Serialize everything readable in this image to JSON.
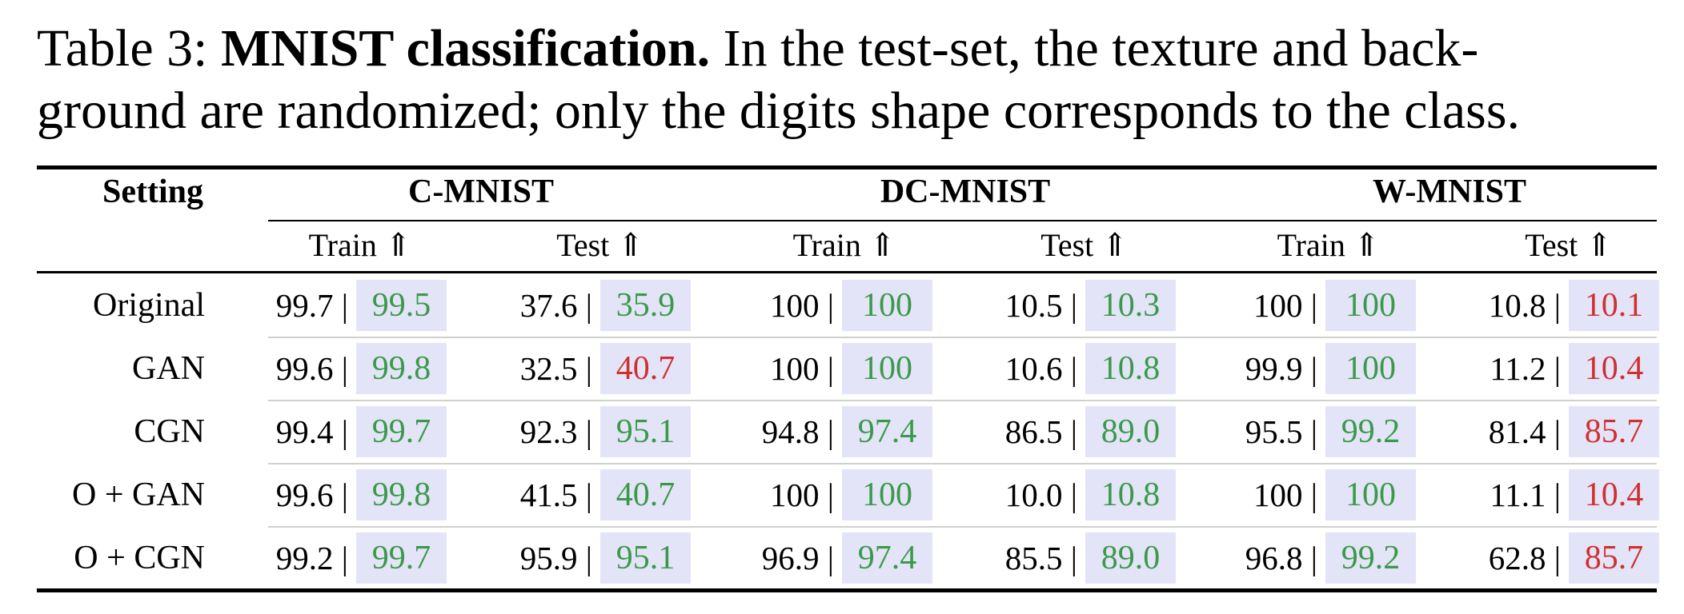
{
  "caption": {
    "prefix": "Table 3: ",
    "bold": "MNIST classification.",
    "line1_rest": " In the test-set, the texture and back-",
    "line2": "ground are randomized; only the digits shape corresponds to the class."
  },
  "table": {
    "setting_header": "Setting",
    "groups": [
      "C-MNIST",
      "DC-MNIST",
      "W-MNIST"
    ],
    "subheaders": [
      "Train ⇑",
      "Test ⇑",
      "Train ⇑",
      "Test ⇑",
      "Train ⇑",
      "Test ⇑"
    ],
    "rows": [
      {
        "label": "Original",
        "cells": [
          {
            "base": "99.7 |",
            "ours": "99.5",
            "status": "good"
          },
          {
            "base": "37.6 |",
            "ours": "35.9",
            "status": "good"
          },
          {
            "base": "100 |",
            "ours": "100",
            "status": "good"
          },
          {
            "base": "10.5 |",
            "ours": "10.3",
            "status": "good"
          },
          {
            "base": "100 |",
            "ours": "100",
            "status": "good"
          },
          {
            "base": "10.8 |",
            "ours": "10.1",
            "status": "bad"
          }
        ]
      },
      {
        "label": "GAN",
        "cells": [
          {
            "base": "99.6 |",
            "ours": "99.8",
            "status": "good"
          },
          {
            "base": "32.5 |",
            "ours": "40.7",
            "status": "bad"
          },
          {
            "base": "100 |",
            "ours": "100",
            "status": "good"
          },
          {
            "base": "10.6 |",
            "ours": "10.8",
            "status": "good"
          },
          {
            "base": "99.9 |",
            "ours": "100",
            "status": "good"
          },
          {
            "base": "11.2 |",
            "ours": "10.4",
            "status": "bad"
          }
        ]
      },
      {
        "label": "CGN",
        "cells": [
          {
            "base": "99.4 |",
            "ours": "99.7",
            "status": "good"
          },
          {
            "base": "92.3 |",
            "ours": "95.1",
            "status": "good"
          },
          {
            "base": "94.8 |",
            "ours": "97.4",
            "status": "good"
          },
          {
            "base": "86.5 |",
            "ours": "89.0",
            "status": "good"
          },
          {
            "base": "95.5 |",
            "ours": "99.2",
            "status": "good"
          },
          {
            "base": "81.4 |",
            "ours": "85.7",
            "status": "bad"
          }
        ]
      },
      {
        "label": "O + GAN",
        "cells": [
          {
            "base": "99.6 |",
            "ours": "99.8",
            "status": "good"
          },
          {
            "base": "41.5 |",
            "ours": "40.7",
            "status": "good"
          },
          {
            "base": "100 |",
            "ours": "100",
            "status": "good"
          },
          {
            "base": "10.0 |",
            "ours": "10.8",
            "status": "good"
          },
          {
            "base": "100 |",
            "ours": "100",
            "status": "good"
          },
          {
            "base": "11.1 |",
            "ours": "10.4",
            "status": "bad"
          }
        ]
      },
      {
        "label": "O + CGN",
        "cells": [
          {
            "base": "99.2 |",
            "ours": "99.7",
            "status": "good"
          },
          {
            "base": "95.9 |",
            "ours": "95.1",
            "status": "good"
          },
          {
            "base": "96.9 |",
            "ours": "97.4",
            "status": "good"
          },
          {
            "base": "85.5 |",
            "ours": "89.0",
            "status": "good"
          },
          {
            "base": "96.8 |",
            "ours": "99.2",
            "status": "good"
          },
          {
            "base": "62.8 |",
            "ours": "85.7",
            "status": "bad"
          }
        ]
      }
    ]
  },
  "colors": {
    "good": "#3a9a4a",
    "bad": "#d03030",
    "highlight_bg": "#e4e4f8"
  }
}
